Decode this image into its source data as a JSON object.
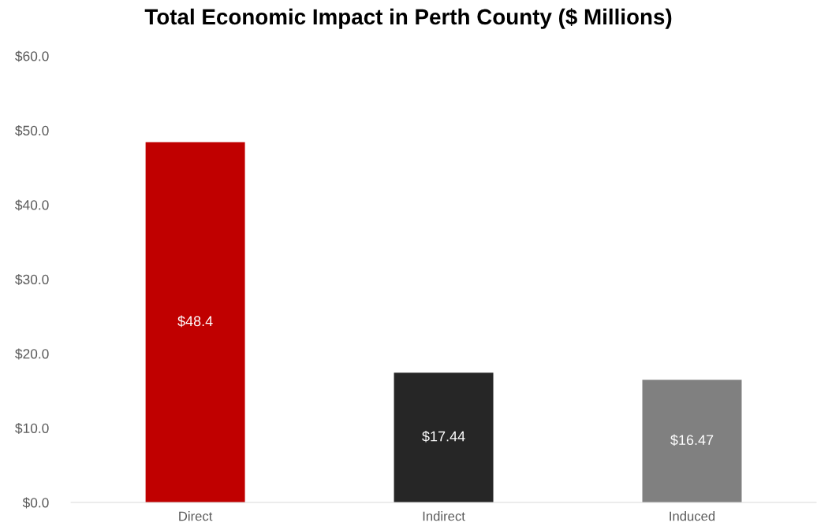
{
  "chart_data": {
    "type": "bar",
    "title": "Total Economic Impact in Perth County ($ Millions)",
    "categories": [
      "Direct",
      "Indirect",
      "Induced"
    ],
    "values": [
      48.4,
      17.44,
      16.47
    ],
    "colors": [
      "#c00000",
      "#262626",
      "#808080"
    ],
    "value_labels": [
      "$48.4",
      "$17.44",
      "$16.47"
    ],
    "ylim": [
      0,
      60
    ],
    "yticks": [
      {
        "value": 0,
        "label": "$0.0"
      },
      {
        "value": 10,
        "label": "$10.0"
      },
      {
        "value": 20,
        "label": "$20.0"
      },
      {
        "value": 30,
        "label": "$30.0"
      },
      {
        "value": 40,
        "label": "$40.0"
      },
      {
        "value": 50,
        "label": "$50.0"
      },
      {
        "value": 60,
        "label": "$60.0"
      }
    ],
    "grid": false,
    "legend": false
  }
}
